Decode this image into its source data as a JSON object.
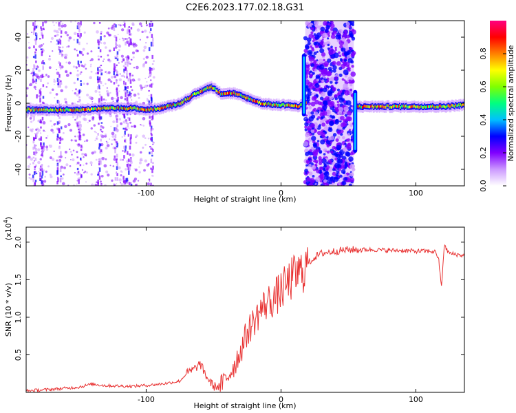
{
  "title": "C2E6.2023.177.02.18.G31",
  "chart_data": [
    {
      "type": "heatmap",
      "xlabel": "Height of straight line (km)",
      "ylabel": "Frequency (Hz)",
      "xlim": [
        -189,
        136
      ],
      "ylim": [
        -50,
        50
      ],
      "x_ticks": [
        -100,
        0,
        100
      ],
      "y_ticks": [
        -40,
        -20,
        0,
        20,
        40
      ],
      "colorbar": {
        "label": "Normalized spectral amplitude",
        "range": [
          0,
          1
        ],
        "ticks": [
          0.0,
          0.2,
          0.4,
          0.6,
          0.8
        ],
        "colors": [
          "#ffffff",
          "#cc99ff",
          "#8000ff",
          "#0000ff",
          "#00c0ff",
          "#00ff80",
          "#80ff00",
          "#ffff00",
          "#ff8000",
          "#ff0000",
          "#ff0080"
        ]
      },
      "series": [
        {
          "x": [
            -189,
            -170,
            -150,
            -130,
            -110,
            -100,
            -90,
            -75,
            -65,
            -58,
            -52,
            -45,
            -35,
            -25,
            -15,
            -5,
            5,
            12,
            16,
            18
          ],
          "y": [
            -4,
            -4,
            -4,
            -3,
            -3,
            -4,
            -3,
            0,
            5,
            8,
            10,
            6,
            6,
            3,
            0,
            -1,
            -1,
            -2,
            -1,
            0
          ]
        },
        {
          "x": [
            56,
            65,
            80,
            95,
            110,
            120,
            136
          ],
          "y": [
            -2,
            -2,
            -2,
            -2,
            -2,
            -2,
            -1
          ]
        }
      ]
    },
    {
      "type": "line",
      "xlabel": "Height of straight line (km)",
      "ylabel": "SNR (10 * v/v)",
      "y_scale_label": "(x10",
      "y_scale_exponent": "4",
      "xlim": [
        -189,
        136
      ],
      "ylim": [
        0.0,
        2.2
      ],
      "x_ticks": [
        -100,
        0,
        100
      ],
      "y_ticks": [
        0.5,
        1.0,
        1.5,
        2.0
      ],
      "color": "#e83030",
      "series": [
        {
          "x": [
            -189,
            -170,
            -150,
            -140,
            -130,
            -110,
            -95,
            -85,
            -75,
            -70,
            -65,
            -60,
            -55,
            -50,
            -45,
            -40,
            -35,
            -30,
            -25,
            -20,
            -15,
            -10,
            -5,
            0,
            5,
            10,
            15,
            20,
            25,
            30,
            40,
            50,
            60,
            70,
            80,
            90,
            100,
            110,
            115,
            117,
            119,
            121,
            125,
            136
          ],
          "y": [
            0.02,
            0.04,
            0.07,
            0.11,
            0.09,
            0.08,
            0.1,
            0.12,
            0.15,
            0.25,
            0.3,
            0.38,
            0.2,
            0.08,
            0.08,
            0.2,
            0.35,
            0.55,
            0.8,
            0.95,
            1.1,
            1.2,
            1.25,
            1.35,
            1.45,
            1.55,
            1.6,
            1.72,
            1.8,
            1.85,
            1.88,
            1.9,
            1.9,
            1.9,
            1.89,
            1.89,
            1.88,
            1.88,
            1.87,
            1.75,
            1.4,
            1.95,
            1.85,
            1.82
          ]
        }
      ]
    }
  ]
}
